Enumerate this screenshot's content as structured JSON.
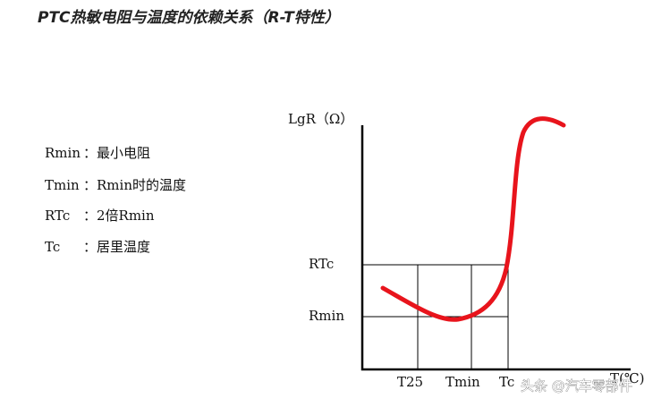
{
  "header": {
    "title": "PTC热敏电阻与温度的依赖关系（R-T特性）"
  },
  "definitions": [
    {
      "term": "Rmin",
      "desc": "：最小电阻"
    },
    {
      "term": "Tmin",
      "desc": "：Rmin时的温度"
    },
    {
      "term": "RTc",
      "desc": "：2倍Rmin"
    },
    {
      "term": "Tc",
      "desc": "：居里温度"
    }
  ],
  "diagram": {
    "y_axis_label": "LgR（Ω）",
    "y_labels": [
      "RTc",
      "Rmin"
    ],
    "x_labels": [
      "T25",
      "Tmin",
      "Tc",
      "T(℃)"
    ]
  },
  "watermark": "头条 @汽车零部件"
}
